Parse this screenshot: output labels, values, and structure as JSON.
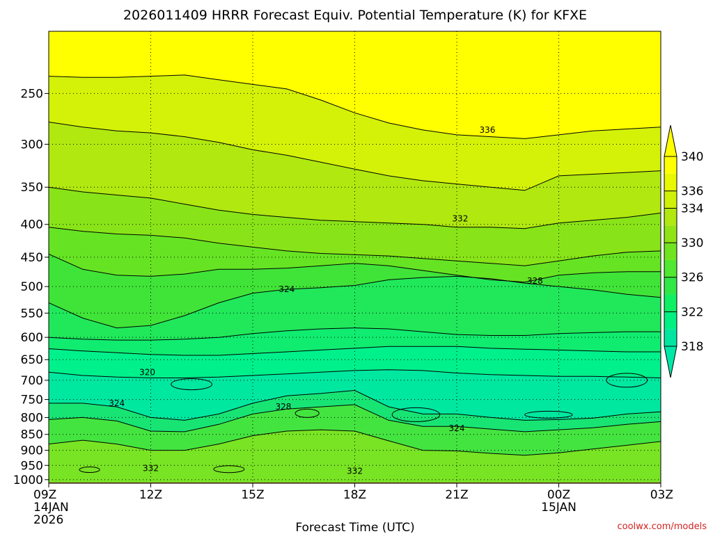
{
  "chart_data": {
    "type": "heatmap",
    "title": "2026011409 HRRR Forecast Equiv. Potential Temperature (K) for KFXE",
    "xlabel": "Forecast Time (UTC)",
    "ylabel": "",
    "x_ticks": [
      {
        "label": "09Z",
        "sub1": "14JAN",
        "sub2": "2026",
        "hour": 0
      },
      {
        "label": "12Z",
        "sub1": "",
        "sub2": "",
        "hour": 3
      },
      {
        "label": "15Z",
        "sub1": "",
        "sub2": "",
        "hour": 6
      },
      {
        "label": "18Z",
        "sub1": "",
        "sub2": "",
        "hour": 9
      },
      {
        "label": "21Z",
        "sub1": "",
        "sub2": "",
        "hour": 12
      },
      {
        "label": "00Z",
        "sub1": "15JAN",
        "sub2": "",
        "hour": 15
      },
      {
        "label": "03Z",
        "sub1": "",
        "sub2": "",
        "hour": 18
      }
    ],
    "x_range": [
      0,
      18
    ],
    "y_ticks": [
      250,
      300,
      350,
      400,
      450,
      500,
      550,
      600,
      650,
      700,
      750,
      800,
      850,
      900,
      950,
      1000
    ],
    "y_range": [
      200,
      1013
    ],
    "y_scale": "log",
    "y_inverted": true,
    "grid": true,
    "colorbar": {
      "levels": [
        318,
        320,
        322,
        324,
        326,
        328,
        330,
        332,
        334,
        336,
        338,
        340
      ],
      "labels": [
        "318",
        "322",
        "326",
        "330",
        "334",
        "336",
        "340"
      ],
      "label_values": [
        318,
        322,
        326,
        330,
        334,
        336,
        340
      ],
      "colors": [
        "#00e6a0",
        "#00f082",
        "#10f064",
        "#30e848",
        "#50e830",
        "#70e420",
        "#90e414",
        "#b0e810",
        "#d0f008",
        "#e8f800",
        "#ffff00"
      ]
    },
    "contour_labels": [
      {
        "text": "336",
        "hour": 12.9,
        "p": 285
      },
      {
        "text": "332",
        "hour": 12.1,
        "p": 392
      },
      {
        "text": "328",
        "hour": 14.3,
        "p": 490
      },
      {
        "text": "324",
        "hour": 7.0,
        "p": 505
      },
      {
        "text": "320",
        "hour": 2.9,
        "p": 680
      },
      {
        "text": "324",
        "hour": 2.0,
        "p": 760
      },
      {
        "text": "328",
        "hour": 6.9,
        "p": 770
      },
      {
        "text": "324",
        "hour": 12.0,
        "p": 832
      },
      {
        "text": "332",
        "hour": 3.0,
        "p": 960
      },
      {
        "text": "332",
        "hour": 9.0,
        "p": 970
      }
    ],
    "ground_color": "#a0522d",
    "credit": "coolwx.com/models"
  }
}
